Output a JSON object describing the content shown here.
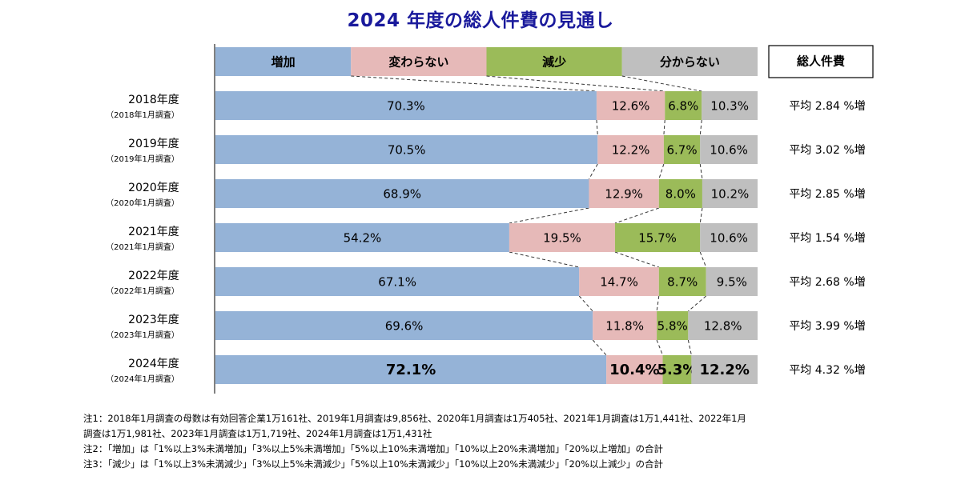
{
  "title": "2024 年度の総人件費の見通し",
  "header_total_label": "総人件費",
  "colors": {
    "増加": "#95b3d7",
    "変わらない": "#e6b9b8",
    "減少": "#9bbb59",
    "分からない": "#bfbfbf"
  },
  "chart_data": {
    "type": "bar",
    "orientation": "horizontal",
    "stacked": "100%",
    "title": "2024 年度の総人件費の見通し",
    "legend": [
      "増加",
      "変わらない",
      "減少",
      "分からない"
    ],
    "categories": [
      "2018年度",
      "2019年度",
      "2020年度",
      "2021年度",
      "2022年度",
      "2023年度",
      "2024年度"
    ],
    "category_sublabels": [
      "（2018年1月調査）",
      "（2019年1月調査）",
      "（2020年1月調査）",
      "（2021年1月調査）",
      "（2022年1月調査）",
      "（2023年1月調査）",
      "（2024年1月調査）"
    ],
    "series": [
      {
        "name": "増加",
        "values": [
          70.3,
          70.5,
          68.9,
          54.2,
          67.1,
          69.6,
          72.1
        ]
      },
      {
        "name": "変わらない",
        "values": [
          12.6,
          12.2,
          12.9,
          19.5,
          14.7,
          11.8,
          10.4
        ]
      },
      {
        "name": "減少",
        "values": [
          6.8,
          6.7,
          8.0,
          15.7,
          8.7,
          5.8,
          5.3
        ]
      },
      {
        "name": "分からない",
        "values": [
          10.3,
          10.6,
          10.2,
          10.6,
          9.5,
          12.8,
          12.2
        ]
      }
    ],
    "total_labor_cost_avg": [
      "平均 2.84 %増",
      "平均 3.02 %増",
      "平均 2.85 %増",
      "平均 1.54 %増",
      "平均 2.68 %増",
      "平均 3.99 %増",
      "平均 4.32 %増"
    ],
    "highlight_category": "2024年度",
    "unit": "%"
  },
  "notes": [
    "注1：2018年1月調査の母数は有効回答企業1万161社、2019年1月調査は9,856社、2020年1月調査は1万405社、2021年1月調査は1万1,441社、2022年1月",
    "調査は1万1,981社、2023年1月調査は1万1,719社、2024年1月調査は1万1,431社",
    "注2：「増加」は「1%以上3%未満増加」「3%以上5%未満増加」「5%以上10%未満増加」「10%以上20%未満増加」「20%以上増加」の合計",
    "注3：「減少」は「1%以上3%未満減少」「3%以上5%未満減少」「5%以上10%未満減少」「10%以上20%未満減少」「20%以上減少」の合計"
  ]
}
